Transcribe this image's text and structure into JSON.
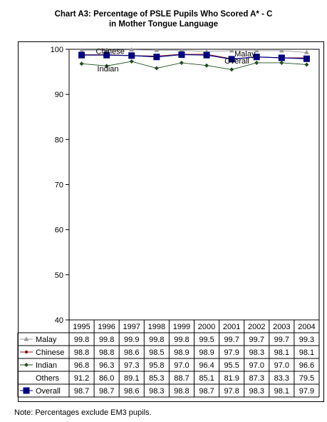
{
  "chart_data": {
    "type": "line",
    "title_line1": "Chart A3:  Percentage of PSLE Pupils Who Scored A* - C",
    "title_line2": "in Mother Tongue Language",
    "ylim": [
      40,
      100
    ],
    "yticks": [
      40,
      50,
      60,
      70,
      80,
      90,
      100
    ],
    "categories": [
      "1995",
      "1996",
      "1997",
      "1998",
      "1999",
      "2000",
      "2001",
      "2002",
      "2003",
      "2004"
    ],
    "series": [
      {
        "name": "Malay",
        "label": "Malay",
        "color": "#999999",
        "marker": "triangle",
        "values": [
          99.8,
          99.8,
          99.9,
          99.8,
          99.8,
          99.5,
          99.7,
          99.7,
          99.7,
          99.3
        ]
      },
      {
        "name": "Chinese",
        "label": "Chinese",
        "color": "#8B1A1A",
        "marker": "circle",
        "values": [
          98.8,
          98.8,
          98.6,
          98.5,
          98.9,
          98.9,
          97.9,
          98.3,
          98.1,
          98.1
        ]
      },
      {
        "name": "Indian",
        "label": "Indian",
        "color": "#1F4D1F",
        "marker": "diamond",
        "values": [
          96.8,
          96.3,
          97.3,
          95.8,
          97.0,
          96.4,
          95.5,
          97.0,
          97.0,
          96.6
        ]
      },
      {
        "name": "Others",
        "label": "",
        "color": "none",
        "marker": "none",
        "values": [
          91.2,
          86.0,
          89.1,
          85.3,
          88.7,
          85.1,
          81.9,
          87.3,
          83.3,
          79.5
        ]
      },
      {
        "name": "Overall",
        "label": "Overall",
        "color": "#000080",
        "marker": "square",
        "values": [
          98.7,
          98.7,
          98.6,
          98.3,
          98.8,
          98.7,
          97.8,
          98.3,
          98.1,
          97.9
        ]
      }
    ]
  },
  "note": "Note:  Percentages exclude EM3 pupils."
}
